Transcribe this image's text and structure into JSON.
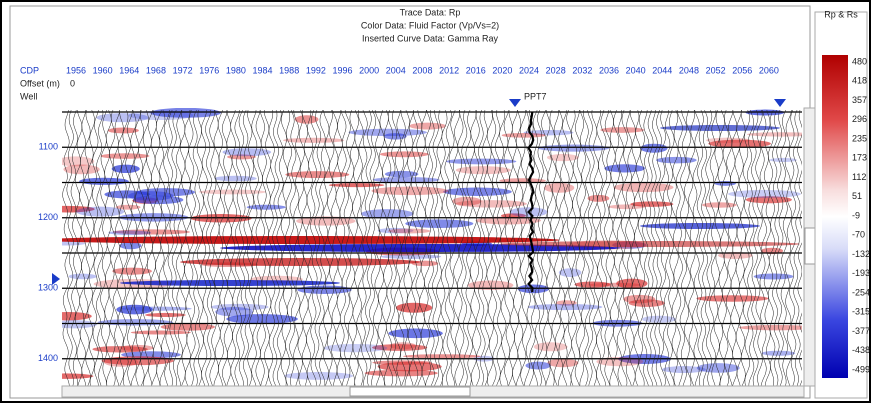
{
  "header": {
    "lines": [
      "Trace Data: Rp",
      "Color Data: Fluid Factor (Vp/Vs=2)",
      "Inserted Curve Data:  Gamma Ray"
    ]
  },
  "row_labels": {
    "cdp": "CDP",
    "offset": "Offset (m)",
    "well": "Well"
  },
  "cdp_values": [
    1956,
    1960,
    1964,
    1968,
    1972,
    1976,
    1980,
    1984,
    1988,
    1992,
    1996,
    2000,
    2004,
    2008,
    2012,
    2016,
    2020,
    2024,
    2028,
    2032,
    2036,
    2040,
    2044,
    2048,
    2052,
    2056,
    2060
  ],
  "offset_value": 0,
  "well_name": "PPT7",
  "depth_labels": [
    1100,
    1200,
    1300,
    1400
  ],
  "color_scale": {
    "title": "Rp & Rs",
    "labels": [
      480,
      418,
      357,
      296,
      235,
      173,
      112,
      51,
      -9,
      -70,
      -132,
      -193,
      -254,
      -315,
      -377,
      -438,
      -499
    ]
  }
}
